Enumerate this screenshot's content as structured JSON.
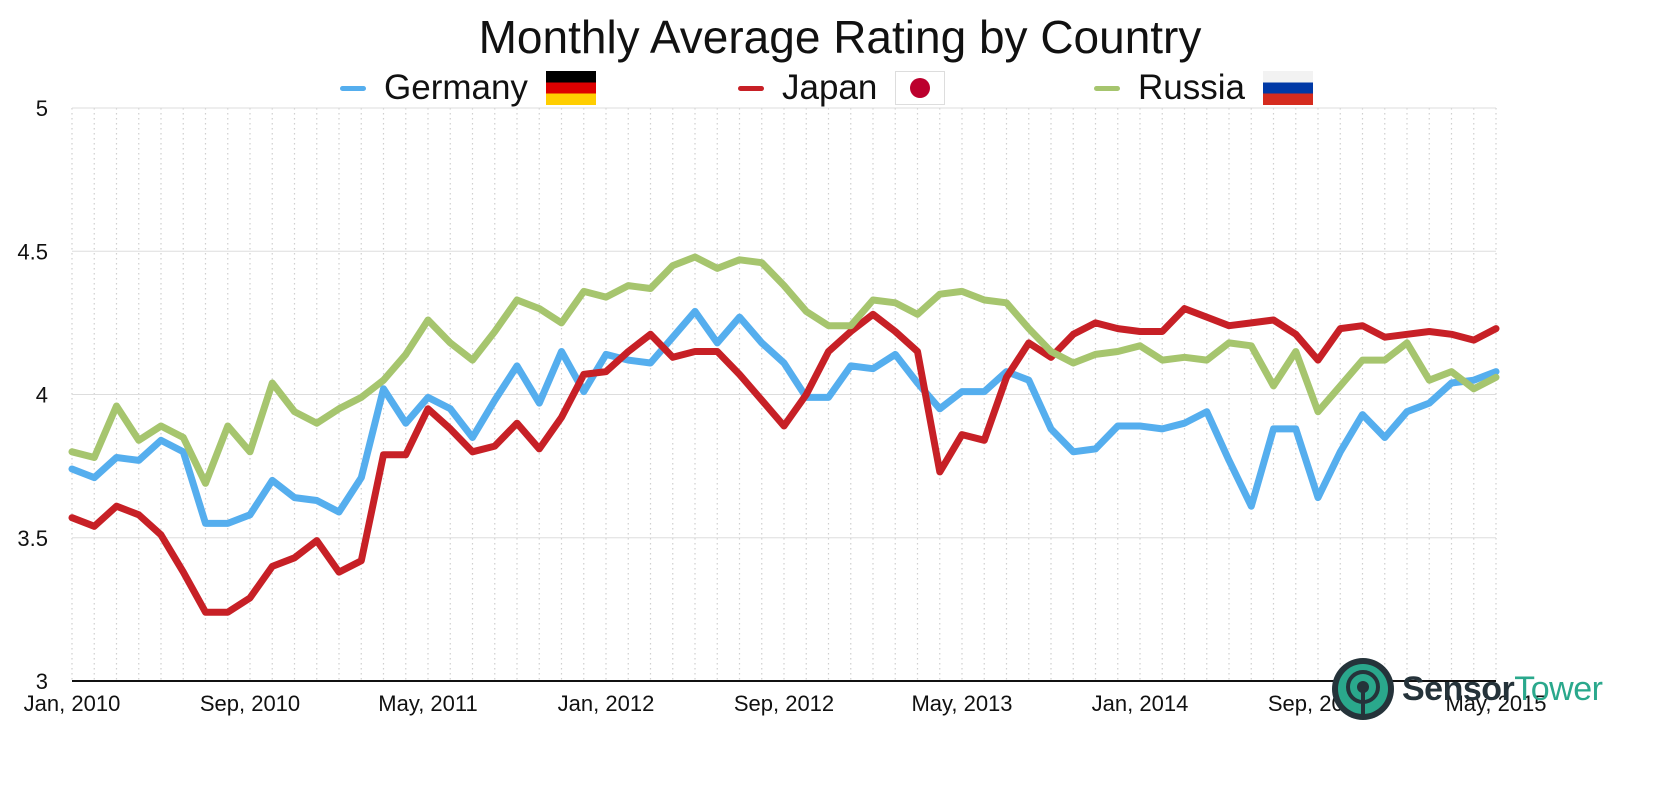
{
  "chart_data": {
    "type": "line",
    "title": "Monthly Average Rating by Country",
    "xlabel": "",
    "ylabel": "",
    "x": [
      "Jan, 2010",
      "Feb, 2010",
      "Mar, 2010",
      "Apr, 2010",
      "May, 2010",
      "Jun, 2010",
      "Jul, 2010",
      "Aug, 2010",
      "Sep, 2010",
      "Oct, 2010",
      "Nov, 2010",
      "Dec, 2010",
      "Jan, 2011",
      "Feb, 2011",
      "Mar, 2011",
      "Apr, 2011",
      "May, 2011",
      "Jun, 2011",
      "Jul, 2011",
      "Aug, 2011",
      "Sep, 2011",
      "Oct, 2011",
      "Nov, 2011",
      "Dec, 2011",
      "Jan, 2012",
      "Feb, 2012",
      "Mar, 2012",
      "Apr, 2012",
      "May, 2012",
      "Jun, 2012",
      "Jul, 2012",
      "Aug, 2012",
      "Sep, 2012",
      "Oct, 2012",
      "Nov, 2012",
      "Dec, 2012",
      "Jan, 2013",
      "Feb, 2013",
      "Mar, 2013",
      "Apr, 2013",
      "May, 2013",
      "Jun, 2013",
      "Jul, 2013",
      "Aug, 2013",
      "Sep, 2013",
      "Oct, 2013",
      "Nov, 2013",
      "Dec, 2013",
      "Jan, 2014",
      "Feb, 2014",
      "Mar, 2014",
      "Apr, 2014",
      "May, 2014",
      "Jun, 2014",
      "Jul, 2014",
      "Aug, 2014",
      "Sep, 2014",
      "Oct, 2014",
      "Nov, 2014",
      "Dec, 2014",
      "Jan, 2015",
      "Feb, 2015",
      "Mar, 2015",
      "Apr, 2015",
      "May, 2015"
    ],
    "x_tick_labels": [
      "Jan, 2010",
      "Sep, 2010",
      "May, 2011",
      "Jan, 2012",
      "Sep, 2012",
      "May, 2013",
      "Jan, 2014",
      "Sep, 2014",
      "May, 2015"
    ],
    "y_tick_labels": [
      "3",
      "3.5",
      "4",
      "4.5",
      "5"
    ],
    "ylim": [
      3,
      5
    ],
    "grid": "vertical dotted per month, horizontal solid per 0.5",
    "legend_position": "top-center",
    "series": [
      {
        "name": "Germany",
        "color": "#55aeee",
        "flag": "germany-flag",
        "values": [
          3.74,
          3.71,
          3.78,
          3.77,
          3.84,
          3.8,
          3.55,
          3.55,
          3.58,
          3.7,
          3.64,
          3.63,
          3.59,
          3.71,
          4.02,
          3.9,
          3.99,
          3.95,
          3.85,
          3.98,
          4.1,
          3.97,
          4.15,
          4.01,
          4.14,
          4.12,
          4.11,
          4.2,
          4.29,
          4.18,
          4.27,
          4.18,
          4.11,
          3.99,
          3.99,
          4.1,
          4.09,
          4.14,
          4.04,
          3.95,
          4.01,
          4.01,
          4.08,
          4.05,
          3.88,
          3.8,
          3.81,
          3.89,
          3.89,
          3.88,
          3.9,
          3.94,
          3.77,
          3.61,
          3.88,
          3.88,
          3.64,
          3.8,
          3.93,
          3.85,
          3.94,
          3.97,
          4.04,
          4.05,
          4.08
        ]
      },
      {
        "name": "Japan",
        "color": "#c72026",
        "flag": "japan-flag",
        "values": [
          3.57,
          3.54,
          3.61,
          3.58,
          3.51,
          3.38,
          3.24,
          3.24,
          3.29,
          3.4,
          3.43,
          3.49,
          3.38,
          3.42,
          3.79,
          3.79,
          3.95,
          3.88,
          3.8,
          3.82,
          3.9,
          3.81,
          3.92,
          4.07,
          4.08,
          4.15,
          4.21,
          4.13,
          4.15,
          4.15,
          4.07,
          3.98,
          3.89,
          4.0,
          4.15,
          4.22,
          4.28,
          4.22,
          4.15,
          3.73,
          3.86,
          3.84,
          4.06,
          4.18,
          4.13,
          4.21,
          4.25,
          4.23,
          4.22,
          4.22,
          4.3,
          4.27,
          4.24,
          4.25,
          4.26,
          4.21,
          4.12,
          4.23,
          4.24,
          4.2,
          4.21,
          4.22,
          4.21,
          4.19,
          4.23
        ]
      },
      {
        "name": "Russia",
        "color": "#a6c56e",
        "flag": "russia-flag",
        "values": [
          3.8,
          3.78,
          3.96,
          3.84,
          3.89,
          3.85,
          3.69,
          3.89,
          3.8,
          4.04,
          3.94,
          3.9,
          3.95,
          3.99,
          4.05,
          4.14,
          4.26,
          4.18,
          4.12,
          4.22,
          4.33,
          4.3,
          4.25,
          4.36,
          4.34,
          4.38,
          4.37,
          4.45,
          4.48,
          4.44,
          4.47,
          4.46,
          4.38,
          4.29,
          4.24,
          4.24,
          4.33,
          4.32,
          4.28,
          4.35,
          4.36,
          4.33,
          4.32,
          4.23,
          4.15,
          4.11,
          4.14,
          4.15,
          4.17,
          4.12,
          4.13,
          4.12,
          4.18,
          4.17,
          4.03,
          4.15,
          3.94,
          4.03,
          4.12,
          4.12,
          4.18,
          4.05,
          4.08,
          4.02,
          4.06
        ]
      }
    ]
  },
  "legend": {
    "germany": "Germany",
    "japan": "Japan",
    "russia": "Russia"
  },
  "brand": {
    "name_bold": "Sensor",
    "name_light": "Tower",
    "icon": "sensortower-logo-icon"
  },
  "colors": {
    "axis": "#111111",
    "grid": "#cfcfcf",
    "brand_dark": "#25333a",
    "brand_teal": "#2aa88c"
  }
}
